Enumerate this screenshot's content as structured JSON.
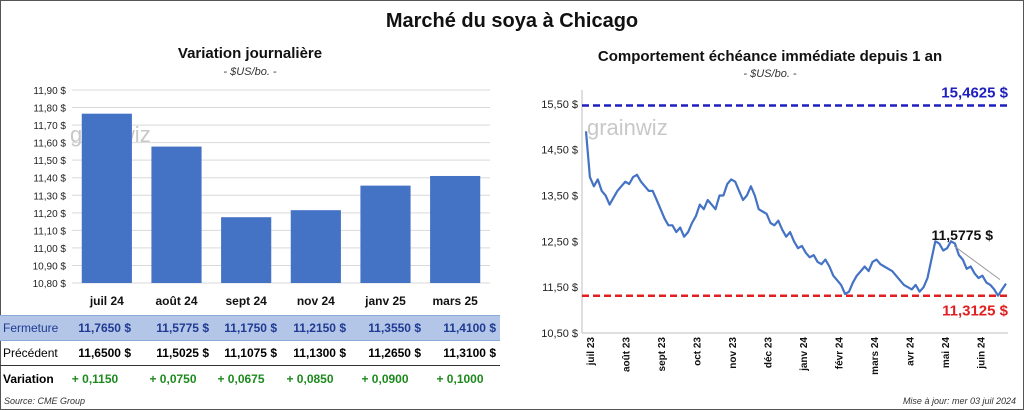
{
  "title": "Marché du soya à Chicago",
  "source": "Source: CME Group",
  "updated": "Mise à jour: mer 03 juil 2024",
  "colors": {
    "bar": "#4472c4",
    "line": "#4472c4",
    "max": "#1f1fbf",
    "min": "#e02020",
    "close_row": "#b4c6e7",
    "variation": "#1e8a1e"
  },
  "table": {
    "close_label": "Fermeture",
    "prev_label": "Précédent",
    "var_label": "Variation",
    "close": [
      "11,7650 $",
      "11,5775 $",
      "11,1750 $",
      "11,2150 $",
      "11,3550 $",
      "11,4100 $"
    ],
    "prev": [
      "11,6500 $",
      "11,5025 $",
      "11,1075 $",
      "11,1300 $",
      "11,2650 $",
      "11,3100 $"
    ],
    "var": [
      "+ 0,1150",
      "+ 0,0750",
      "+ 0,0675",
      "+ 0,0850",
      "+ 0,0900",
      "+ 0,1000"
    ]
  },
  "chart_data": [
    {
      "type": "bar",
      "title": "Variation journalière",
      "subtitle": "- $US/bo. -",
      "watermark": "grainwiz",
      "categories": [
        "juil 24",
        "août 24",
        "sept 24",
        "nov 24",
        "janv 25",
        "mars 25"
      ],
      "values": [
        11.765,
        11.5775,
        11.175,
        11.215,
        11.355,
        11.41
      ],
      "ylim": [
        10.8,
        11.9
      ],
      "yticks": [
        "10,80 $",
        "10,90 $",
        "11,00 $",
        "11,10 $",
        "11,20 $",
        "11,30 $",
        "11,40 $",
        "11,50 $",
        "11,60 $",
        "11,70 $",
        "11,80 $",
        "11,90 $"
      ],
      "grid": true
    },
    {
      "type": "line",
      "title": "Comportement échéance immédiate depuis 1 an",
      "subtitle": "- $US/bo. -",
      "watermark": "grainwiz",
      "ylim": [
        10.5,
        15.8
      ],
      "yticks": [
        "10,50 $",
        "11,50 $",
        "12,50 $",
        "13,50 $",
        "14,50 $",
        "15,50 $"
      ],
      "xticks": [
        "juil 23",
        "août 23",
        "sept 23",
        "oct 23",
        "nov 23",
        "déc 23",
        "janv 24",
        "févr 24",
        "mars 24",
        "avr 24",
        "mai 24",
        "juin 24"
      ],
      "max_value": 15.4625,
      "max_label": "15,4625 $",
      "min_value": 11.3125,
      "min_label": "11,3125 $",
      "last_label": "11,5775 $",
      "y": [
        14.9,
        13.9,
        13.7,
        13.85,
        13.6,
        13.5,
        13.3,
        13.45,
        13.6,
        13.7,
        13.8,
        13.75,
        13.9,
        13.95,
        13.8,
        13.7,
        13.6,
        13.6,
        13.4,
        13.2,
        13.0,
        12.85,
        12.85,
        12.7,
        12.8,
        12.6,
        12.7,
        12.9,
        13.05,
        13.3,
        13.2,
        13.4,
        13.3,
        13.2,
        13.5,
        13.5,
        13.75,
        13.85,
        13.8,
        13.6,
        13.4,
        13.5,
        13.7,
        13.5,
        13.2,
        13.15,
        13.1,
        12.9,
        12.85,
        12.95,
        12.75,
        12.6,
        12.7,
        12.5,
        12.35,
        12.4,
        12.25,
        12.15,
        12.2,
        12.05,
        12.0,
        12.1,
        11.95,
        11.75,
        11.65,
        11.55,
        11.35,
        11.4,
        11.6,
        11.75,
        11.85,
        11.95,
        11.85,
        12.05,
        12.1,
        12.0,
        11.95,
        11.9,
        11.85,
        11.75,
        11.65,
        11.55,
        11.5,
        11.45,
        11.55,
        11.4,
        11.5,
        11.7,
        12.1,
        12.5,
        12.45,
        12.3,
        12.35,
        12.5,
        12.45,
        12.2,
        12.1,
        11.9,
        11.95,
        11.8,
        11.7,
        11.75,
        11.6,
        11.55,
        11.45,
        11.3125,
        11.45,
        11.5775
      ]
    }
  ]
}
